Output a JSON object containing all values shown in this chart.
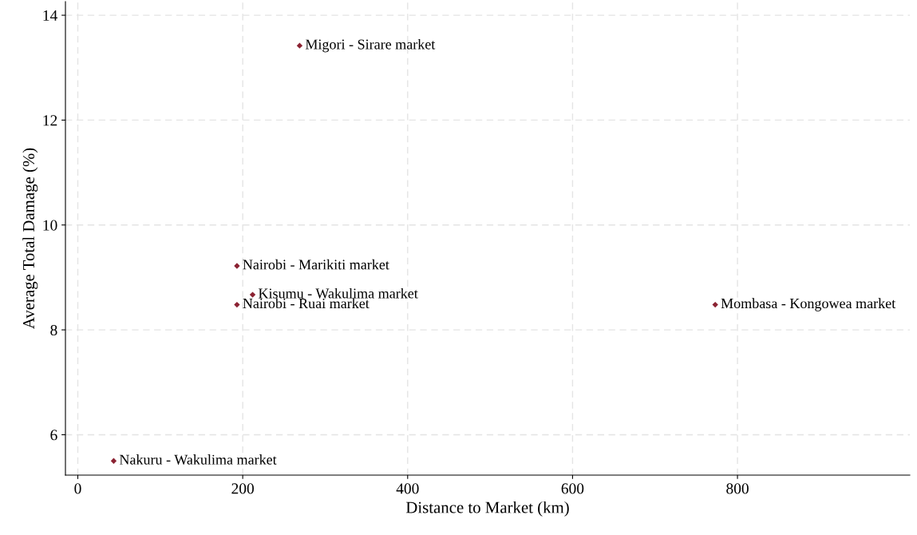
{
  "chart_data": {
    "type": "scatter",
    "xlabel": "Distance to Market (km)",
    "ylabel": "Average Total Damage (%)",
    "x": [
      269,
      193,
      212,
      193,
      773,
      43.5
    ],
    "values": [
      13.42,
      9.22,
      8.67,
      8.48,
      8.48,
      5.5
    ],
    "color": "#8b2232",
    "marker": "diamond",
    "grid": true,
    "xlim": [
      -15,
      1009
    ],
    "ylim": [
      5.23,
      14.26
    ],
    "xticks": [
      0,
      200,
      400,
      600,
      800
    ],
    "yticks": [
      6,
      8,
      10,
      12,
      14
    ],
    "annotations": [
      {
        "text": "Migori - Sirare market",
        "x": 269,
        "y": 13.42
      },
      {
        "text": "Nairobi - Marikiti market",
        "x": 193,
        "y": 9.22
      },
      {
        "text": "Kisumu - Wakulima market",
        "x": 212,
        "y": 8.67
      },
      {
        "text": "Nairobi - Ruai market",
        "x": 193,
        "y": 8.48
      },
      {
        "text": "Mombasa - Kongowea market",
        "x": 773,
        "y": 8.48
      },
      {
        "text": "Nakuru - Wakulima market",
        "x": 43.5,
        "y": 5.5
      }
    ]
  }
}
